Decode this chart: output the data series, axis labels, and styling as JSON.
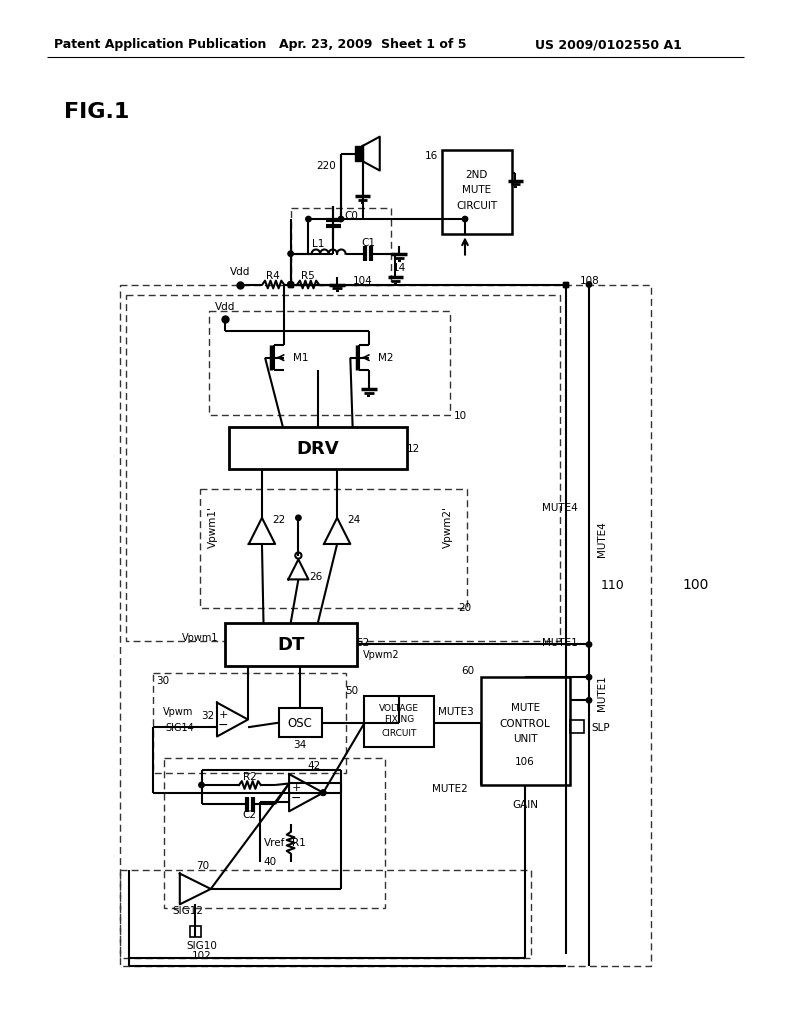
{
  "header_left": "Patent Application Publication",
  "header_mid": "Apr. 23, 2009  Sheet 1 of 5",
  "header_right": "US 2009/0102550 A1",
  "fig_label": "FIG.1",
  "bg_color": "#ffffff"
}
